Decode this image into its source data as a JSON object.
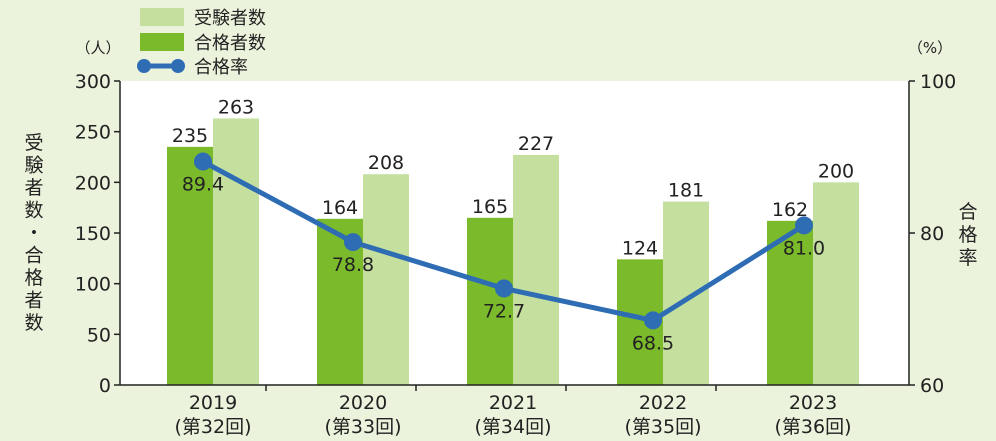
{
  "chart_data": {
    "type": "bar",
    "categories": [
      "2019\n(第32回)",
      "2020\n(第33回)",
      "2021\n(第34回)",
      "2022\n(第35回)",
      "2023\n(第36回)"
    ],
    "category_lines": [
      [
        "2019",
        "(第32回)"
      ],
      [
        "2020",
        "(第33回)"
      ],
      [
        "2021",
        "(第34回)"
      ],
      [
        "2022",
        "(第35回)"
      ],
      [
        "2023",
        "(第36回)"
      ]
    ],
    "series": [
      {
        "name": "受験者数",
        "kind": "bar",
        "axis": "left",
        "color": "#c5df9f",
        "values": [
          263,
          208,
          227,
          181,
          200
        ]
      },
      {
        "name": "合格者数",
        "kind": "bar",
        "axis": "left",
        "color": "#7bbb2b",
        "values": [
          235,
          164,
          165,
          124,
          162
        ]
      },
      {
        "name": "合格率",
        "kind": "line",
        "axis": "right",
        "color": "#2e6db4",
        "values": [
          89.4,
          78.8,
          72.7,
          68.5,
          81.0
        ],
        "labels": [
          "89.4",
          "78.8",
          "72.7",
          "68.5",
          "81.0"
        ]
      }
    ],
    "y_left": {
      "label": "受験者数・合格者数",
      "unit": "（人）",
      "range": [
        0,
        300
      ],
      "ticks": [
        0,
        50,
        100,
        150,
        200,
        250,
        300
      ]
    },
    "y_right": {
      "label": "合格率",
      "unit": "（%）",
      "range": [
        60,
        100
      ],
      "ticks": [
        60,
        80,
        100
      ]
    },
    "legend_placement": "top-left",
    "grid": false
  }
}
